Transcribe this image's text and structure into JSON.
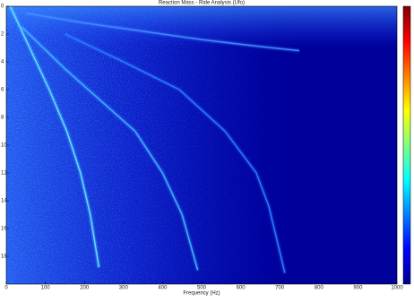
{
  "chart_data": {
    "type": "line",
    "title": "Reaction Mass - Ride Analysis (Ufo)",
    "x_label": "Frequency (Hz)",
    "xlim": [
      0,
      1000
    ],
    "xticks": [
      0,
      100,
      200,
      300,
      400,
      500,
      600,
      700,
      800,
      900,
      1000
    ],
    "ylim": [
      0,
      20
    ],
    "yticks": [
      0,
      2,
      4,
      6,
      8,
      10,
      12,
      14,
      16,
      18
    ],
    "background_color": "#00009a",
    "series": [
      {
        "color": "#5fe0ff",
        "x": [
          10,
          60,
          110,
          155,
          190,
          215,
          237
        ],
        "values": [
          0,
          3,
          6,
          9,
          12,
          15,
          18.8
        ]
      },
      {
        "color": "#3fb0ff",
        "x": [
          40,
          150,
          250,
          330,
          400,
          450,
          490
        ],
        "values": [
          1.5,
          4.5,
          7,
          9,
          12,
          15,
          19
        ]
      },
      {
        "color": "#2a7cff",
        "x": [
          150,
          300,
          443,
          560,
          640,
          672,
          713
        ],
        "values": [
          2,
          4,
          6,
          9,
          12,
          14.4,
          19.2
        ]
      },
      {
        "color": "#3f8cff",
        "x": [
          50,
          200,
          350,
          500,
          650,
          750
        ],
        "values": [
          0.5,
          1.2,
          1.8,
          2.4,
          2.9,
          3.2
        ]
      }
    ]
  }
}
